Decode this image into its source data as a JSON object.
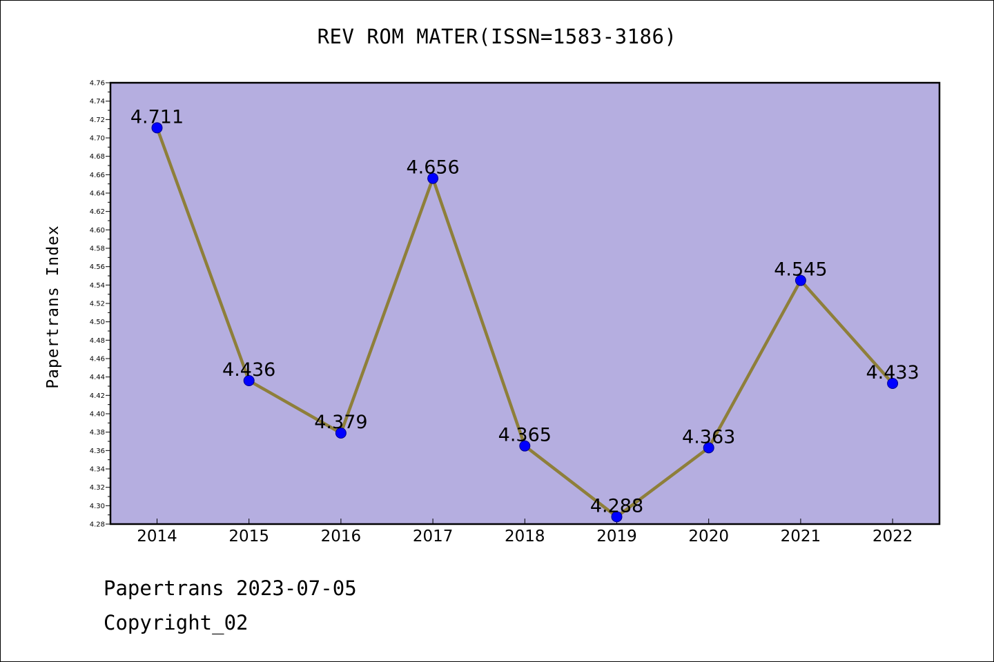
{
  "chart_data": {
    "type": "line",
    "title": "REV ROM MATER(ISSN=1583-3186)",
    "xlabel": "",
    "ylabel": "Papertrans Index",
    "categories": [
      "2014",
      "2015",
      "2016",
      "2017",
      "2018",
      "2019",
      "2020",
      "2021",
      "2022"
    ],
    "values": [
      4.711,
      4.436,
      4.379,
      4.656,
      4.365,
      4.288,
      4.363,
      4.545,
      4.433
    ],
    "data_labels": [
      "4.711",
      "4.436",
      "4.379",
      "4.656",
      "4.365",
      "4.288",
      "4.363",
      "4.545",
      "4.433"
    ],
    "ylim": [
      4.28,
      4.76
    ],
    "y_ticks": [
      "4.28",
      "4.30",
      "4.32",
      "4.34",
      "4.36",
      "4.38",
      "4.40",
      "4.42",
      "4.44",
      "4.46",
      "4.48",
      "4.50",
      "4.52",
      "4.54",
      "4.56",
      "4.58",
      "4.60",
      "4.62",
      "4.64",
      "4.66",
      "4.68",
      "4.70",
      "4.72",
      "4.74",
      "4.76"
    ],
    "grid": false,
    "legend": "none",
    "colors": {
      "plot_background": "#b5aee0",
      "line": "#8e7f3a",
      "marker_fill": "#0000ff",
      "marker_stroke": "#00008b"
    }
  },
  "footer": {
    "date_line": "Papertrans 2023-07-05",
    "copyright_line": "Copyright_02"
  }
}
